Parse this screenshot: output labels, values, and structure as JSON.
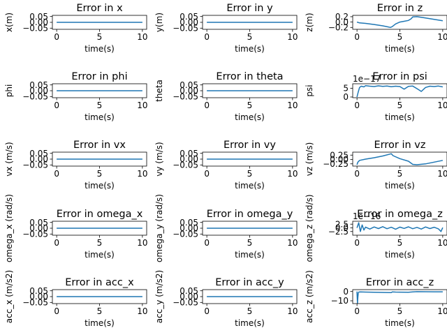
{
  "style": {
    "line_color": "#1f77b4",
    "axes_color": "#000000",
    "background": "#ffffff"
  },
  "chart_data": [
    {
      "type": "line",
      "title": "Error in x",
      "xlabel": "time(s)",
      "ylabel": "x(m)",
      "xlim": [
        -0.5,
        10.5
      ],
      "ylim": [
        -0.06,
        0.06
      ],
      "xticks": [
        0,
        5,
        10
      ],
      "xtick_labels": [
        "0",
        "5",
        "10"
      ],
      "yticks": [
        0.05,
        0,
        -0.05
      ],
      "ytick_labels": [
        "0.05",
        "0.00",
        "−0.05"
      ],
      "offset_text": "",
      "series": [
        {
          "x": [
            0,
            10
          ],
          "y": [
            0,
            0
          ]
        }
      ]
    },
    {
      "type": "line",
      "title": "Error in y",
      "xlabel": "time(s)",
      "ylabel": "y(m)",
      "xlim": [
        -0.5,
        10.5
      ],
      "ylim": [
        -0.06,
        0.06
      ],
      "xticks": [
        0,
        5,
        10
      ],
      "xtick_labels": [
        "0",
        "5",
        "10"
      ],
      "yticks": [
        0.05,
        0,
        -0.05
      ],
      "ytick_labels": [
        "0.05",
        "0.00",
        "−0.05"
      ],
      "offset_text": "",
      "series": [
        {
          "x": [
            0,
            10
          ],
          "y": [
            0,
            0
          ]
        }
      ]
    },
    {
      "type": "line",
      "title": "Error in z",
      "xlabel": "time(s)",
      "ylabel": "z(m)",
      "xlim": [
        -0.5,
        10.5
      ],
      "ylim": [
        -0.27,
        0.25
      ],
      "xticks": [
        0,
        5,
        10
      ],
      "xtick_labels": [
        "0",
        "5",
        "10"
      ],
      "yticks": [
        0.2,
        0,
        -0.2
      ],
      "ytick_labels": [
        "0.2",
        "0.0",
        "−0.2"
      ],
      "offset_text": "",
      "series": [
        {
          "x": [
            0,
            0.3,
            1,
            2,
            3,
            3.6,
            3.9,
            4.1,
            4.5,
            5,
            5.5,
            6,
            6.3,
            6.5,
            7,
            8,
            9,
            10
          ],
          "y": [
            0,
            -0.03,
            -0.05,
            -0.09,
            -0.14,
            -0.18,
            -0.2,
            -0.17,
            -0.07,
            0,
            0.03,
            0.06,
            0.12,
            0.19,
            0.2,
            0.15,
            0.1,
            0.05
          ]
        }
      ]
    },
    {
      "type": "line",
      "title": "Error in phi",
      "xlabel": "time(s)",
      "ylabel": "phi",
      "xlim": [
        -0.5,
        10.5
      ],
      "ylim": [
        -0.06,
        0.06
      ],
      "xticks": [
        0,
        5,
        10
      ],
      "xtick_labels": [
        "0",
        "5",
        "10"
      ],
      "yticks": [
        0.05,
        0,
        -0.05
      ],
      "ytick_labels": [
        "0.05",
        "0.00",
        "−0.05"
      ],
      "offset_text": "",
      "series": [
        {
          "x": [
            0,
            10
          ],
          "y": [
            0,
            0
          ]
        }
      ]
    },
    {
      "type": "line",
      "title": "Error in theta",
      "xlabel": "time(s)",
      "ylabel": "theta",
      "xlim": [
        -0.5,
        10.5
      ],
      "ylim": [
        -0.06,
        0.06
      ],
      "xticks": [
        0,
        5,
        10
      ],
      "xtick_labels": [
        "0",
        "5",
        "10"
      ],
      "yticks": [
        0.05,
        0,
        -0.05
      ],
      "ytick_labels": [
        "0.05",
        "0.00",
        "−0.05"
      ],
      "offset_text": "",
      "series": [
        {
          "x": [
            0,
            10
          ],
          "y": [
            0,
            0
          ]
        }
      ]
    },
    {
      "type": "line",
      "title": "Error in psi",
      "xlabel": "time(s)",
      "ylabel": "psi",
      "xlim": [
        -0.5,
        10.5
      ],
      "ylim": [
        -0.4,
        7.6
      ],
      "xticks": [
        0,
        5,
        10
      ],
      "xtick_labels": [
        "0",
        "5",
        "10"
      ],
      "yticks": [
        5,
        0
      ],
      "ytick_labels": [
        "5",
        "0"
      ],
      "offset_text": "1e−17",
      "series": [
        {
          "x": [
            0,
            0.15,
            0.3,
            0.5,
            0.8,
            1,
            1.5,
            2,
            2.5,
            3,
            3.5,
            4,
            4.5,
            5,
            5.5,
            6,
            6.5,
            7,
            7.5,
            8,
            8.5,
            9,
            9.5,
            10
          ],
          "y": [
            0,
            3,
            5.5,
            6.2,
            5.8,
            6.5,
            6.2,
            6.0,
            6.4,
            6.1,
            6.3,
            5.9,
            6.2,
            6.0,
            4.5,
            6.1,
            6.3,
            4.8,
            3.2,
            5.5,
            6.2,
            6.0,
            6.3,
            5.8
          ]
        }
      ]
    },
    {
      "type": "line",
      "title": "Error in vx",
      "xlabel": "time(s)",
      "ylabel": "vx (m/s)",
      "xlim": [
        -0.5,
        10.5
      ],
      "ylim": [
        -0.06,
        0.06
      ],
      "xticks": [
        0,
        5,
        10
      ],
      "xtick_labels": [
        "0",
        "5",
        "10"
      ],
      "yticks": [
        0.05,
        0,
        -0.05
      ],
      "ytick_labels": [
        "0.05",
        "0.00",
        "−0.05"
      ],
      "offset_text": "",
      "series": [
        {
          "x": [
            0,
            10
          ],
          "y": [
            0,
            0
          ]
        }
      ]
    },
    {
      "type": "line",
      "title": "Error in vy",
      "xlabel": "time(s)",
      "ylabel": "vy (m/s)",
      "xlim": [
        -0.5,
        10.5
      ],
      "ylim": [
        -0.06,
        0.06
      ],
      "xticks": [
        0,
        5,
        10
      ],
      "xtick_labels": [
        "0",
        "5",
        "10"
      ],
      "yticks": [
        0.05,
        0,
        -0.05
      ],
      "ytick_labels": [
        "0.05",
        "0.00",
        "−0.05"
      ],
      "offset_text": "",
      "series": [
        {
          "x": [
            0,
            10
          ],
          "y": [
            0,
            0
          ]
        }
      ]
    },
    {
      "type": "line",
      "title": "Error in vz",
      "xlabel": "time(s)",
      "ylabel": "vz (m/s)",
      "xlim": [
        -0.5,
        10.5
      ],
      "ylim": [
        -0.38,
        0.42
      ],
      "xticks": [
        0,
        5,
        10
      ],
      "xtick_labels": [
        "0",
        "5",
        "10"
      ],
      "yticks": [
        0.25,
        0,
        -0.25
      ],
      "ytick_labels": [
        "0.25",
        "0.00",
        "−0.25"
      ],
      "offset_text": "",
      "series": [
        {
          "x": [
            0,
            0.1,
            0.3,
            1,
            2,
            3,
            4,
            4.2,
            5,
            6,
            6.5,
            7,
            8,
            9,
            10
          ],
          "y": [
            -0.3,
            -0.15,
            -0.05,
            0.02,
            0.1,
            0.2,
            0.33,
            0.22,
            0.05,
            -0.1,
            -0.28,
            -0.3,
            -0.25,
            -0.15,
            -0.05
          ]
        }
      ]
    },
    {
      "type": "line",
      "title": "Error in omega_x",
      "xlabel": "time(s)",
      "ylabel": "omega_x (rad/s)",
      "xlim": [
        -0.5,
        10.5
      ],
      "ylim": [
        -0.06,
        0.06
      ],
      "xticks": [
        0,
        5,
        10
      ],
      "xtick_labels": [
        "0",
        "5",
        "10"
      ],
      "yticks": [
        0.05,
        0,
        -0.05
      ],
      "ytick_labels": [
        "0.05",
        "0.00",
        "−0.05"
      ],
      "offset_text": "",
      "series": [
        {
          "x": [
            0,
            10
          ],
          "y": [
            0,
            0
          ]
        }
      ]
    },
    {
      "type": "line",
      "title": "Error in omega_y",
      "xlabel": "time(s)",
      "ylabel": "omega_y (rad/s)",
      "xlim": [
        -0.5,
        10.5
      ],
      "ylim": [
        -0.06,
        0.06
      ],
      "xticks": [
        0,
        5,
        10
      ],
      "xtick_labels": [
        "0",
        "5",
        "10"
      ],
      "yticks": [
        0.05,
        0,
        -0.05
      ],
      "ytick_labels": [
        "0.05",
        "0.00",
        "−0.05"
      ],
      "offset_text": "",
      "series": [
        {
          "x": [
            0,
            10
          ],
          "y": [
            0,
            0
          ]
        }
      ]
    },
    {
      "type": "line",
      "title": "Error in omega_z",
      "xlabel": "time(s)",
      "ylabel": "omega_z (rad/s)",
      "xlim": [
        -0.5,
        10.5
      ],
      "ylim": [
        -5,
        4.5
      ],
      "xticks": [
        0,
        5,
        10
      ],
      "xtick_labels": [
        "0",
        "5",
        "10"
      ],
      "yticks": [
        2.5,
        0,
        -2.5
      ],
      "ytick_labels": [
        "2.5",
        "0.0",
        "−2.5"
      ],
      "offset_text": "1e−16",
      "series": [
        {
          "x": [
            0,
            0.2,
            0.4,
            0.6,
            0.8,
            1,
            1.5,
            2,
            2.5,
            3,
            3.5,
            4,
            4.5,
            5,
            5.5,
            6,
            6.5,
            7,
            7.5,
            8,
            8.5,
            9,
            9.5,
            9.8,
            10
          ],
          "y": [
            0,
            3.5,
            -2.5,
            2,
            -1.5,
            0.5,
            -0.8,
            0.6,
            -0.5,
            0.8,
            -0.6,
            0.4,
            -0.9,
            0.5,
            -0.4,
            0.7,
            -0.6,
            0.3,
            -0.8,
            0.6,
            -0.5,
            0.4,
            -0.7,
            -2.5,
            0.2
          ]
        }
      ]
    },
    {
      "type": "line",
      "title": "Error in acc_x",
      "xlabel": "time(s)",
      "ylabel": "acc_x (m/s2)",
      "xlim": [
        -0.5,
        10.5
      ],
      "ylim": [
        -0.06,
        0.06
      ],
      "xticks": [
        0,
        5,
        10
      ],
      "xtick_labels": [
        "0",
        "5",
        "10"
      ],
      "yticks": [
        0.05,
        0,
        -0.05
      ],
      "ytick_labels": [
        "0.05",
        "0.00",
        "−0.05"
      ],
      "offset_text": "",
      "series": [
        {
          "x": [
            0,
            10
          ],
          "y": [
            0,
            0
          ]
        }
      ]
    },
    {
      "type": "line",
      "title": "Error in acc_y",
      "xlabel": "time(s)",
      "ylabel": "acc_y (m/s2)",
      "xlim": [
        -0.5,
        10.5
      ],
      "ylim": [
        -0.06,
        0.06
      ],
      "xticks": [
        0,
        5,
        10
      ],
      "xtick_labels": [
        "0",
        "5",
        "10"
      ],
      "yticks": [
        0.05,
        0,
        -0.05
      ],
      "ytick_labels": [
        "0.05",
        "0.00",
        "−0.05"
      ],
      "offset_text": "",
      "series": [
        {
          "x": [
            0,
            10
          ],
          "y": [
            0,
            0
          ]
        }
      ]
    },
    {
      "type": "line",
      "title": "Error in acc_z",
      "xlabel": "time(s)",
      "ylabel": "acc_z (m/s2)",
      "xlim": [
        -0.5,
        10.5
      ],
      "ylim": [
        -13,
        2
      ],
      "xticks": [
        0,
        5,
        10
      ],
      "xtick_labels": [
        "0",
        "5",
        "10"
      ],
      "yticks": [
        0,
        -10
      ],
      "ytick_labels": [
        "0",
        "−10"
      ],
      "offset_text": "",
      "series": [
        {
          "x": [
            0,
            0.05,
            0.1,
            0.15,
            0.2,
            0.4,
            1,
            2,
            3,
            4,
            4.1,
            4.5,
            5,
            6,
            6.5,
            7,
            8,
            9,
            10
          ],
          "y": [
            0,
            -12.5,
            -6,
            -1.5,
            -0.6,
            -0.5,
            -0.6,
            -0.8,
            -1.0,
            -1.2,
            -0.5,
            -0.6,
            -0.7,
            -0.8,
            -0.4,
            -0.2,
            -0.25,
            -0.3,
            -0.35
          ]
        }
      ]
    }
  ]
}
